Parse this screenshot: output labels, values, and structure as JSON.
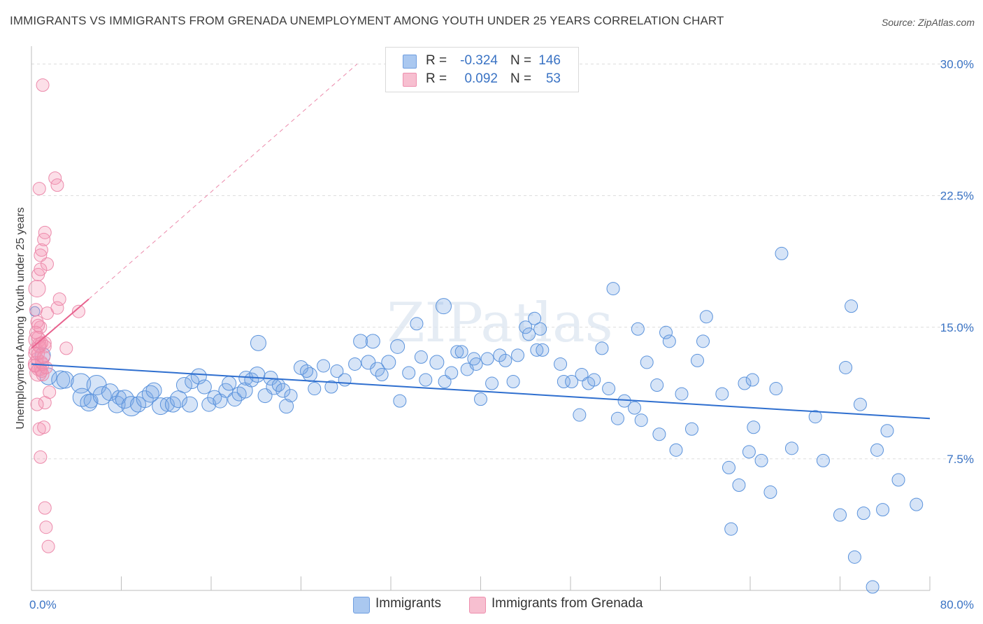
{
  "title": "IMMIGRANTS VS IMMIGRANTS FROM GRENADA UNEMPLOYMENT AMONG YOUTH UNDER 25 YEARS CORRELATION CHART",
  "source": "Source: ZipAtlas.com",
  "watermark": "ZIPatlas",
  "stats": [
    {
      "r_label": "R =",
      "r_value": "-0.324",
      "n_label": "N =",
      "n_value": "146",
      "color": "#aac8f0",
      "border": "#6f9ee0"
    },
    {
      "r_label": "R =",
      "r_value": "0.092",
      "n_label": "N =",
      "n_value": "53",
      "color": "#f7bfd0",
      "border": "#ee8fae"
    }
  ],
  "legend": [
    {
      "label": "Immigrants",
      "color": "#aac8f0",
      "border": "#6f9ee0"
    },
    {
      "label": "Immigrants from Grenada",
      "color": "#f7bfd0",
      "border": "#ee8fae"
    }
  ],
  "colors": {
    "blue_fill": "rgba(120,165,230,0.30)",
    "blue_stroke": "#5b93dc",
    "blue_line": "#2f6fcf",
    "pink_fill": "rgba(244,150,180,0.30)",
    "pink_stroke": "#ec8aab",
    "pink_line": "#e8628e",
    "axis_label": "#3a73c4"
  },
  "chart_data": {
    "type": "scatter",
    "title": "IMMIGRANTS VS IMMIGRANTS FROM GRENADA UNEMPLOYMENT AMONG YOUTH UNDER 25 YEARS CORRELATION CHART",
    "xlabel": "",
    "ylabel": "Unemployment Among Youth under 25 years",
    "xlim": [
      0,
      80
    ],
    "ylim": [
      0,
      30.5
    ],
    "x_tick_labels": [
      "0.0%",
      "80.0%"
    ],
    "y_ticks": [
      7.5,
      15.0,
      22.5,
      30.0
    ],
    "y_tick_labels": [
      "7.5%",
      "15.0%",
      "22.5%",
      "30.0%"
    ],
    "grid": true,
    "legend_position": "bottom-center",
    "series": [
      {
        "name": "Immigrants",
        "trend": {
          "x": [
            0,
            80
          ],
          "y": [
            12.9,
            9.8
          ]
        },
        "points": [
          [
            0.3,
            15.9,
            7
          ],
          [
            1.0,
            13.4,
            11
          ],
          [
            1.5,
            12.2,
            12
          ],
          [
            2.6,
            12.0,
            13
          ],
          [
            3.0,
            12.0,
            12
          ],
          [
            4.4,
            11.8,
            14
          ],
          [
            4.5,
            11.0,
            13
          ],
          [
            5.1,
            10.7,
            12
          ],
          [
            5.3,
            10.8,
            10
          ],
          [
            5.8,
            11.7,
            14
          ],
          [
            6.3,
            11.1,
            13
          ],
          [
            7.0,
            11.3,
            12
          ],
          [
            7.6,
            10.6,
            12
          ],
          [
            7.8,
            11.0,
            10
          ],
          [
            8.3,
            10.9,
            13
          ],
          [
            8.9,
            10.5,
            14
          ],
          [
            9.5,
            10.6,
            11
          ],
          [
            10.1,
            10.9,
            12
          ],
          [
            10.6,
            11.2,
            12
          ],
          [
            10.9,
            11.4,
            11
          ],
          [
            11.5,
            10.5,
            12
          ],
          [
            12.1,
            10.6,
            10
          ],
          [
            12.6,
            10.6,
            11
          ],
          [
            13.1,
            10.9,
            12
          ],
          [
            13.6,
            11.7,
            11
          ],
          [
            14.1,
            10.6,
            11
          ],
          [
            14.3,
            11.9,
            10
          ],
          [
            14.9,
            12.2,
            11
          ],
          [
            15.4,
            11.6,
            10
          ],
          [
            15.8,
            10.6,
            10
          ],
          [
            16.3,
            11.0,
            10
          ],
          [
            16.8,
            10.8,
            10
          ],
          [
            17.3,
            11.4,
            10
          ],
          [
            17.6,
            11.8,
            10
          ],
          [
            18.1,
            10.9,
            10
          ],
          [
            18.5,
            11.2,
            10
          ],
          [
            19.0,
            11.4,
            11
          ],
          [
            19.1,
            12.1,
            10
          ],
          [
            19.6,
            12.0,
            10
          ],
          [
            20.1,
            12.3,
            11
          ],
          [
            20.2,
            14.1,
            11
          ],
          [
            20.8,
            11.1,
            10
          ],
          [
            21.3,
            12.1,
            10
          ],
          [
            21.6,
            11.6,
            11
          ],
          [
            22.0,
            11.7,
            9
          ],
          [
            22.4,
            11.4,
            10
          ],
          [
            22.7,
            10.5,
            10
          ],
          [
            23.1,
            11.1,
            9
          ],
          [
            24.8,
            12.3,
            10
          ],
          [
            24.0,
            12.7,
            10
          ],
          [
            24.5,
            12.5,
            9
          ],
          [
            25.2,
            11.5,
            9
          ],
          [
            26.0,
            12.8,
            9
          ],
          [
            26.7,
            11.6,
            9
          ],
          [
            27.2,
            12.5,
            9
          ],
          [
            27.9,
            12.0,
            9
          ],
          [
            28.8,
            12.9,
            9
          ],
          [
            29.3,
            14.2,
            10
          ],
          [
            30.0,
            13.0,
            10
          ],
          [
            30.4,
            14.2,
            10
          ],
          [
            30.8,
            12.6,
            10
          ],
          [
            31.2,
            12.3,
            9
          ],
          [
            31.8,
            13.0,
            10
          ],
          [
            32.6,
            13.9,
            10
          ],
          [
            32.8,
            10.8,
            9
          ],
          [
            33.6,
            12.4,
            9
          ],
          [
            34.3,
            15.2,
            9
          ],
          [
            34.7,
            13.3,
            9
          ],
          [
            35.1,
            12.0,
            9
          ],
          [
            36.1,
            13.0,
            10
          ],
          [
            36.7,
            16.2,
            11
          ],
          [
            36.8,
            11.9,
            9
          ],
          [
            37.4,
            12.4,
            9
          ],
          [
            37.9,
            13.6,
            9
          ],
          [
            38.3,
            13.6,
            9
          ],
          [
            38.8,
            12.6,
            9
          ],
          [
            39.4,
            13.2,
            9
          ],
          [
            39.6,
            12.9,
            9
          ],
          [
            40.0,
            10.9,
            9
          ],
          [
            40.6,
            13.2,
            9
          ],
          [
            41.0,
            11.8,
            9
          ],
          [
            41.7,
            13.4,
            9
          ],
          [
            42.2,
            13.1,
            9
          ],
          [
            42.9,
            11.9,
            9
          ],
          [
            43.3,
            13.4,
            9
          ],
          [
            44.0,
            15.0,
            9
          ],
          [
            44.3,
            14.6,
            9
          ],
          [
            44.8,
            15.5,
            9
          ],
          [
            45.0,
            13.7,
            9
          ],
          [
            45.3,
            14.9,
            9
          ],
          [
            45.5,
            13.7,
            9
          ],
          [
            47.1,
            12.9,
            9
          ],
          [
            47.4,
            11.9,
            9
          ],
          [
            48.1,
            11.9,
            9
          ],
          [
            48.8,
            10.0,
            9
          ],
          [
            49.0,
            12.3,
            9
          ],
          [
            49.6,
            11.8,
            9
          ],
          [
            50.1,
            12.0,
            9
          ],
          [
            50.8,
            13.8,
            9
          ],
          [
            51.4,
            11.5,
            9
          ],
          [
            51.8,
            17.2,
            9
          ],
          [
            52.2,
            9.8,
            9
          ],
          [
            52.8,
            10.8,
            9
          ],
          [
            53.7,
            10.4,
            9
          ],
          [
            54.0,
            14.9,
            9
          ],
          [
            54.3,
            9.7,
            9
          ],
          [
            54.8,
            13.0,
            9
          ],
          [
            55.7,
            11.7,
            9
          ],
          [
            55.9,
            8.9,
            9
          ],
          [
            56.5,
            14.7,
            9
          ],
          [
            56.8,
            14.2,
            9
          ],
          [
            57.4,
            8.0,
            9
          ],
          [
            57.9,
            11.2,
            9
          ],
          [
            58.8,
            9.2,
            9
          ],
          [
            59.3,
            13.1,
            9
          ],
          [
            59.8,
            14.2,
            9
          ],
          [
            60.1,
            15.6,
            9
          ],
          [
            61.5,
            11.2,
            9
          ],
          [
            62.1,
            7.0,
            9
          ],
          [
            62.3,
            3.5,
            9
          ],
          [
            63.0,
            6.0,
            9
          ],
          [
            63.5,
            11.8,
            9
          ],
          [
            63.9,
            7.9,
            9
          ],
          [
            64.2,
            12.0,
            9
          ],
          [
            64.3,
            9.3,
            9
          ],
          [
            65.0,
            7.4,
            9
          ],
          [
            65.8,
            5.6,
            9
          ],
          [
            66.3,
            11.5,
            9
          ],
          [
            66.8,
            19.2,
            9
          ],
          [
            67.7,
            8.1,
            9
          ],
          [
            69.8,
            9.9,
            9
          ],
          [
            70.5,
            7.4,
            9
          ],
          [
            72.0,
            4.3,
            9
          ],
          [
            72.5,
            12.7,
            9
          ],
          [
            73.0,
            16.2,
            9
          ],
          [
            73.3,
            1.9,
            9
          ],
          [
            73.8,
            10.6,
            9
          ],
          [
            74.1,
            4.4,
            9
          ],
          [
            74.9,
            0.2,
            9
          ],
          [
            75.3,
            8.0,
            9
          ],
          [
            75.8,
            4.6,
            9
          ],
          [
            76.2,
            9.1,
            9
          ],
          [
            77.2,
            6.3,
            9
          ],
          [
            78.8,
            4.9,
            9
          ]
        ]
      },
      {
        "name": "Immigrants from Grenada",
        "trend": {
          "x": [
            0,
            5.1
          ],
          "y": [
            13.8,
            16.6
          ]
        },
        "trend_extension": {
          "x": [
            5.1,
            29.0
          ],
          "y": [
            16.6,
            30.0
          ]
        },
        "points": [
          [
            1.0,
            28.8,
            9
          ],
          [
            0.5,
            17.2,
            12
          ],
          [
            0.4,
            12.9,
            11
          ],
          [
            0.6,
            12.4,
            12
          ],
          [
            0.4,
            13.7,
            10
          ],
          [
            0.5,
            14.3,
            12
          ],
          [
            0.7,
            14.0,
            10
          ],
          [
            0.8,
            15.0,
            9
          ],
          [
            0.4,
            16.0,
            9
          ],
          [
            0.5,
            15.3,
            9
          ],
          [
            0.5,
            13.2,
            9
          ],
          [
            0.6,
            12.6,
            9
          ],
          [
            0.8,
            12.6,
            9
          ],
          [
            0.7,
            13.9,
            9
          ],
          [
            0.6,
            14.4,
            9
          ],
          [
            0.9,
            12.5,
            9
          ],
          [
            1.0,
            12.3,
            9
          ],
          [
            1.2,
            14.1,
            9
          ],
          [
            1.2,
            13.9,
            9
          ],
          [
            1.4,
            15.8,
            9
          ],
          [
            0.9,
            19.4,
            9
          ],
          [
            1.1,
            20.0,
            9
          ],
          [
            1.2,
            20.4,
            9
          ],
          [
            0.6,
            18.0,
            9
          ],
          [
            0.8,
            18.3,
            9
          ],
          [
            1.4,
            18.6,
            9
          ],
          [
            0.8,
            19.1,
            9
          ],
          [
            2.1,
            23.5,
            9
          ],
          [
            2.3,
            23.1,
            9
          ],
          [
            0.7,
            22.9,
            9
          ],
          [
            2.3,
            16.1,
            9
          ],
          [
            2.5,
            16.6,
            9
          ],
          [
            3.1,
            13.8,
            9
          ],
          [
            4.2,
            15.9,
            9
          ],
          [
            1.6,
            11.3,
            9
          ],
          [
            1.2,
            10.7,
            9
          ],
          [
            0.5,
            10.6,
            9
          ],
          [
            0.7,
            9.2,
            9
          ],
          [
            1.1,
            9.3,
            9
          ],
          [
            0.8,
            7.6,
            9
          ],
          [
            1.2,
            4.7,
            9
          ],
          [
            1.3,
            3.6,
            9
          ],
          [
            1.5,
            2.5,
            9
          ],
          [
            0.3,
            13.5,
            9
          ],
          [
            0.3,
            12.8,
            9
          ],
          [
            0.9,
            13.0,
            9
          ],
          [
            1.0,
            12.9,
            9
          ],
          [
            1.3,
            12.7,
            9
          ],
          [
            0.6,
            13.5,
            9
          ],
          [
            0.9,
            14.1,
            9
          ],
          [
            1.1,
            13.3,
            9
          ],
          [
            0.4,
            14.7,
            9
          ],
          [
            0.6,
            15.1,
            9
          ]
        ]
      }
    ]
  }
}
